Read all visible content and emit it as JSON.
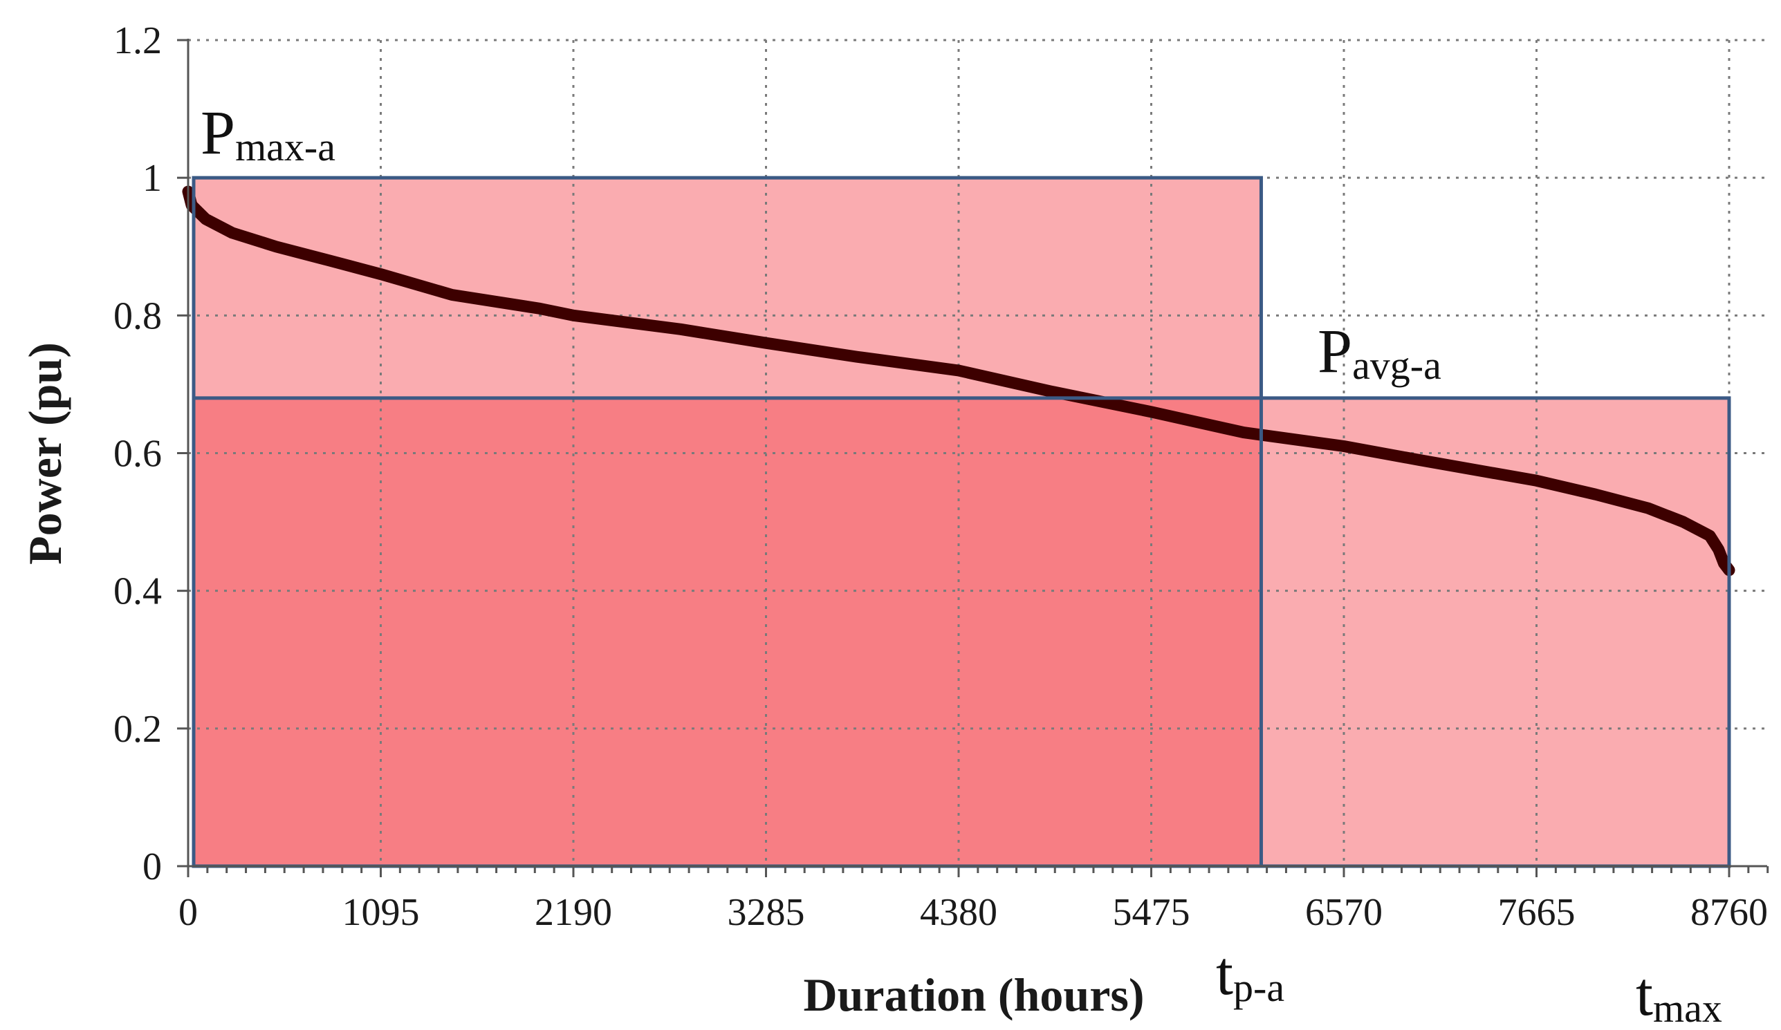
{
  "chart_data": {
    "type": "line",
    "title": "",
    "xlabel": "Duration (hours)",
    "ylabel": "Power (pu)",
    "xlim": [
      0,
      8760
    ],
    "ylim": [
      0,
      1.2
    ],
    "x_ticks": [
      "0",
      "1095",
      "2190",
      "3285",
      "4380",
      "5475",
      "6570",
      "7665",
      "8760"
    ],
    "y_ticks": [
      "0",
      "0.2",
      "0.4",
      "0.6",
      "0.8",
      "1",
      "1.2"
    ],
    "grid": true,
    "series": [
      {
        "type": "line",
        "color": "#3d0000",
        "x": [
          0,
          20,
          100,
          250,
          500,
          800,
          1095,
          1500,
          2000,
          2190,
          2800,
          3285,
          3800,
          4380,
          4900,
          5475,
          6000,
          6570,
          7000,
          7665,
          8000,
          8300,
          8500,
          8650,
          8700,
          8730,
          8760
        ],
        "y": [
          0.98,
          0.96,
          0.94,
          0.92,
          0.9,
          0.88,
          0.86,
          0.83,
          0.81,
          0.8,
          0.78,
          0.76,
          0.74,
          0.72,
          0.69,
          0.66,
          0.63,
          0.61,
          0.59,
          0.56,
          0.54,
          0.52,
          0.5,
          0.48,
          0.46,
          0.44,
          0.43
        ]
      }
    ],
    "regions": [
      {
        "name": "energy-rectangle-a",
        "x": [
          0,
          6100
        ],
        "y": [
          0,
          1.0
        ],
        "color": "#fca5a8"
      },
      {
        "name": "average-power-rectangle",
        "x": [
          0,
          8760
        ],
        "y": [
          0,
          0.68
        ],
        "color": "#fca5a8"
      }
    ],
    "annotations": [
      {
        "main": "P",
        "sub": "max-a",
        "x": 0,
        "y": 1.0
      },
      {
        "main": "P",
        "sub": "avg-a",
        "x": 6100,
        "y": 0.68
      },
      {
        "main": "t",
        "sub": "p-a",
        "x": 6100,
        "y": 0
      },
      {
        "main": "t",
        "sub": "max",
        "x": 8760,
        "y": 0
      }
    ],
    "outline_color": "#3b5a85"
  }
}
